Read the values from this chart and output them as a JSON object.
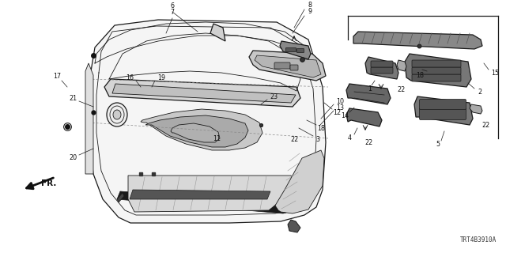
{
  "background_color": "#ffffff",
  "fig_width": 6.4,
  "fig_height": 3.2,
  "dpi": 100,
  "diagram_code": "TRT4B3910A",
  "line_color": "#1a1a1a",
  "dark_fill": "#222222",
  "mid_fill": "#888888",
  "light_fill": "#cccccc",
  "label_fontsize": 5.8
}
